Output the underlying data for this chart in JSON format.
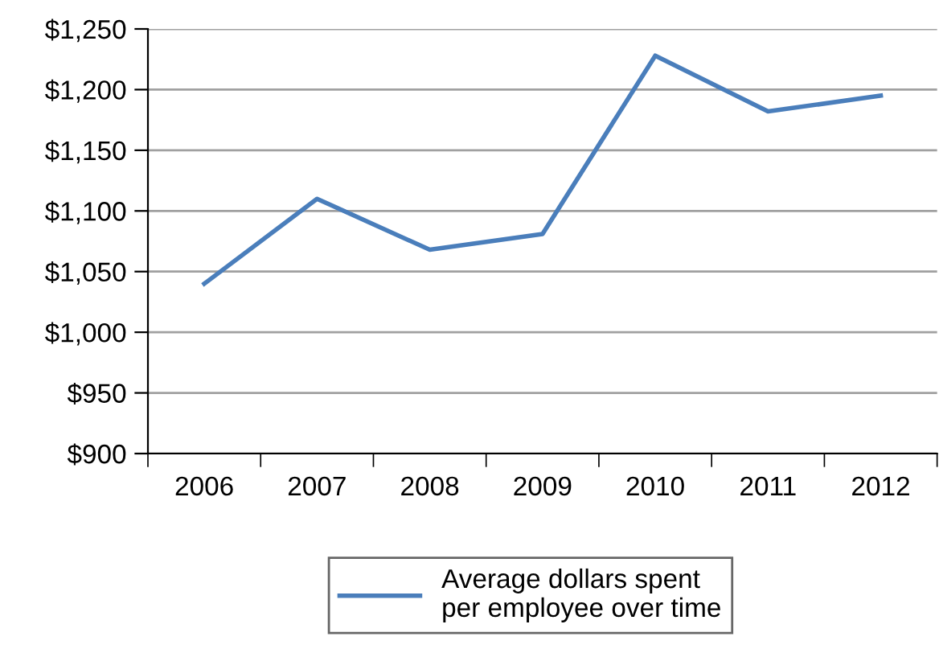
{
  "chart_data": {
    "type": "line",
    "categories": [
      "2006",
      "2007",
      "2008",
      "2009",
      "2010",
      "2011",
      "2012"
    ],
    "series": [
      {
        "name": "Average dollars spent\nper employee over time",
        "color": "#4a7ebb",
        "values": [
          1040,
          1110,
          1068,
          1081,
          1228,
          1182,
          1195
        ]
      }
    ],
    "ylim": [
      900,
      1250
    ],
    "yticks": [
      {
        "value": 900,
        "label": "$900"
      },
      {
        "value": 950,
        "label": "$950"
      },
      {
        "value": 1000,
        "label": "$1,000"
      },
      {
        "value": 1050,
        "label": "$1,050"
      },
      {
        "value": 1100,
        "label": "$1,100"
      },
      {
        "value": 1150,
        "label": "$1,150"
      },
      {
        "value": 1200,
        "label": "$1,200"
      },
      {
        "value": 1250,
        "label": "$1,250"
      }
    ],
    "grid": "y",
    "legend": "bottom",
    "marker": "none",
    "line_style": "solid"
  }
}
